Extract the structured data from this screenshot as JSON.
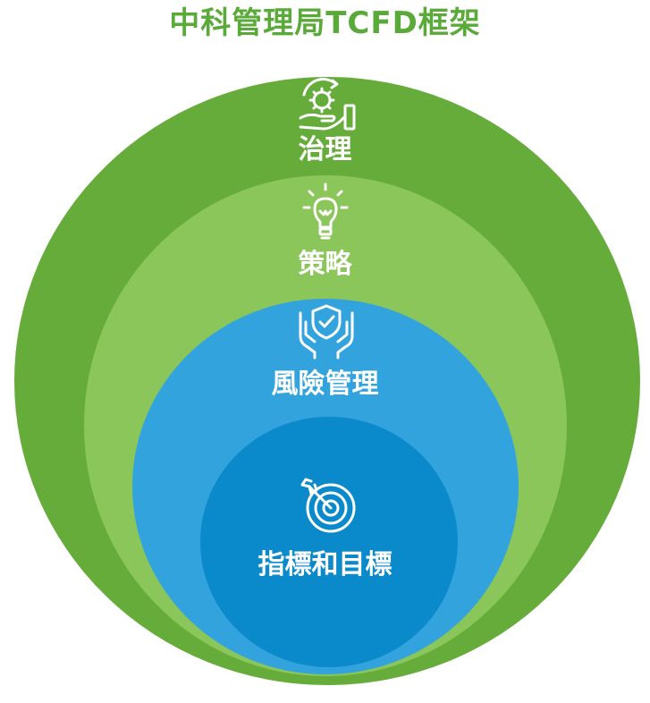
{
  "title": "中科管理局TCFD框架",
  "colors": {
    "title": "#5aaa3a",
    "outer_ring": "#66ac3a",
    "strategy_ring": "#8bc65a",
    "risk_ring": "#33a3dd",
    "metrics_ring": "#0a8acb",
    "icon_stroke": "#ffffff"
  },
  "layers": [
    {
      "label": "治理",
      "icon": "gear-hand-icon"
    },
    {
      "label": "策略",
      "icon": "lightbulb-icon"
    },
    {
      "label": "風險管理",
      "icon": "shield-hands-icon"
    },
    {
      "label": "指標和目標",
      "icon": "target-arrow-icon"
    }
  ]
}
